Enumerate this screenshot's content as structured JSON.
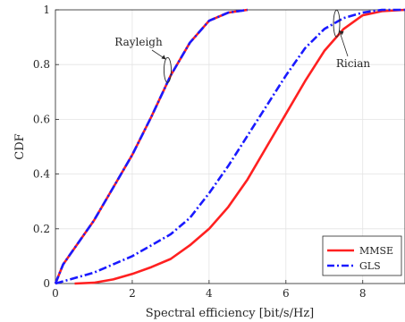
{
  "chart_data": {
    "type": "line",
    "title": "",
    "xlabel": "Spectral efficiency [bit/s/Hz]",
    "ylabel": "CDF",
    "xlim": [
      0,
      9.1
    ],
    "ylim": [
      0,
      1
    ],
    "xticks": [
      0,
      2,
      4,
      6,
      8
    ],
    "yticks": [
      0,
      0.2,
      0.4,
      0.6,
      0.8,
      1
    ],
    "xtick_labels": [
      "0",
      "2",
      "4",
      "6",
      "8"
    ],
    "ytick_labels": [
      "0",
      "0.2",
      "0.4",
      "0.6",
      "0.8",
      "1"
    ],
    "grid": true,
    "legend": {
      "placement": "bottom-right",
      "entries": [
        "MMSE",
        "GLS"
      ]
    },
    "colors": {
      "MMSE": "#ff2020",
      "GLS": "#1a1aff"
    },
    "annotations": [
      {
        "text": "Rayleigh",
        "ellipse_at": [
          2.92,
          0.78
        ],
        "arrow_from_text": true
      },
      {
        "text": "Rician",
        "ellipse_at": [
          7.32,
          0.95
        ],
        "arrow_from_text": true
      }
    ],
    "series": [
      {
        "name": "MMSE",
        "group": "Rayleigh",
        "style": "solid",
        "x": [
          0,
          0.2,
          0.5,
          1.0,
          1.5,
          2.0,
          2.5,
          3.0,
          3.5,
          4.0,
          4.5,
          5.0
        ],
        "y": [
          0,
          0.07,
          0.13,
          0.23,
          0.35,
          0.47,
          0.61,
          0.76,
          0.88,
          0.96,
          0.99,
          1.0
        ]
      },
      {
        "name": "GLS",
        "group": "Rayleigh",
        "style": "dashdot",
        "x": [
          0,
          0.2,
          0.5,
          1.0,
          1.5,
          2.0,
          2.5,
          3.0,
          3.5,
          4.0,
          4.5,
          5.0
        ],
        "y": [
          0,
          0.07,
          0.13,
          0.23,
          0.35,
          0.47,
          0.61,
          0.76,
          0.88,
          0.96,
          0.99,
          1.0
        ]
      },
      {
        "name": "MMSE",
        "group": "Rician",
        "style": "solid",
        "x": [
          0.5,
          1.0,
          1.5,
          2.0,
          2.5,
          3.0,
          3.5,
          4.0,
          4.5,
          5.0,
          5.5,
          6.0,
          6.5,
          7.0,
          7.5,
          8.0,
          8.5,
          9.1
        ],
        "y": [
          0,
          0.003,
          0.015,
          0.035,
          0.06,
          0.09,
          0.14,
          0.2,
          0.28,
          0.38,
          0.5,
          0.62,
          0.74,
          0.85,
          0.93,
          0.98,
          0.995,
          1.0
        ]
      },
      {
        "name": "GLS",
        "group": "Rician",
        "style": "dashdot",
        "x": [
          0,
          0.5,
          1.0,
          1.5,
          2.0,
          2.5,
          3.0,
          3.5,
          4.0,
          4.5,
          5.0,
          5.5,
          6.0,
          6.5,
          7.0,
          7.5,
          8.0,
          8.5,
          9.1
        ],
        "y": [
          0,
          0.02,
          0.04,
          0.07,
          0.1,
          0.14,
          0.18,
          0.24,
          0.33,
          0.43,
          0.54,
          0.65,
          0.76,
          0.86,
          0.93,
          0.97,
          0.99,
          1.0,
          1.0
        ]
      }
    ]
  }
}
